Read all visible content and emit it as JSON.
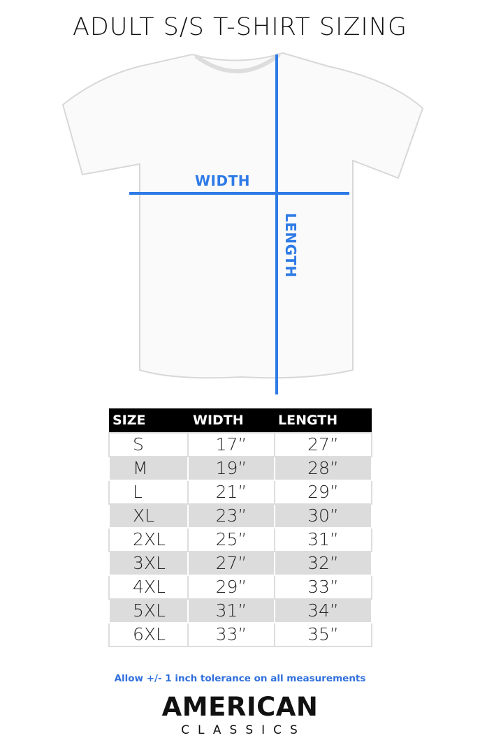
{
  "title": "ADULT S/S T-SHIRT SIZING",
  "diagram": {
    "width_label": "WIDTH",
    "length_label": "LENGTH",
    "line_color": "#2f7be6"
  },
  "table": {
    "headers": [
      "SIZE",
      "WIDTH",
      "LENGTH"
    ],
    "rows": [
      [
        "S",
        "17”",
        "27”"
      ],
      [
        "M",
        "19”",
        "28”"
      ],
      [
        "L",
        "21”",
        "29”"
      ],
      [
        "XL",
        "23”",
        "30”"
      ],
      [
        "2XL",
        "25”",
        "31”"
      ],
      [
        "3XL",
        "27”",
        "32”"
      ],
      [
        "4XL",
        "29”",
        "33”"
      ],
      [
        "5XL",
        "31”",
        "34”"
      ],
      [
        "6XL",
        "33”",
        "35”"
      ]
    ]
  },
  "note": "Allow +/- 1 inch tolerance on all measurements",
  "logo": {
    "line1": "AMERICAN",
    "line2": "CLASSICS"
  }
}
